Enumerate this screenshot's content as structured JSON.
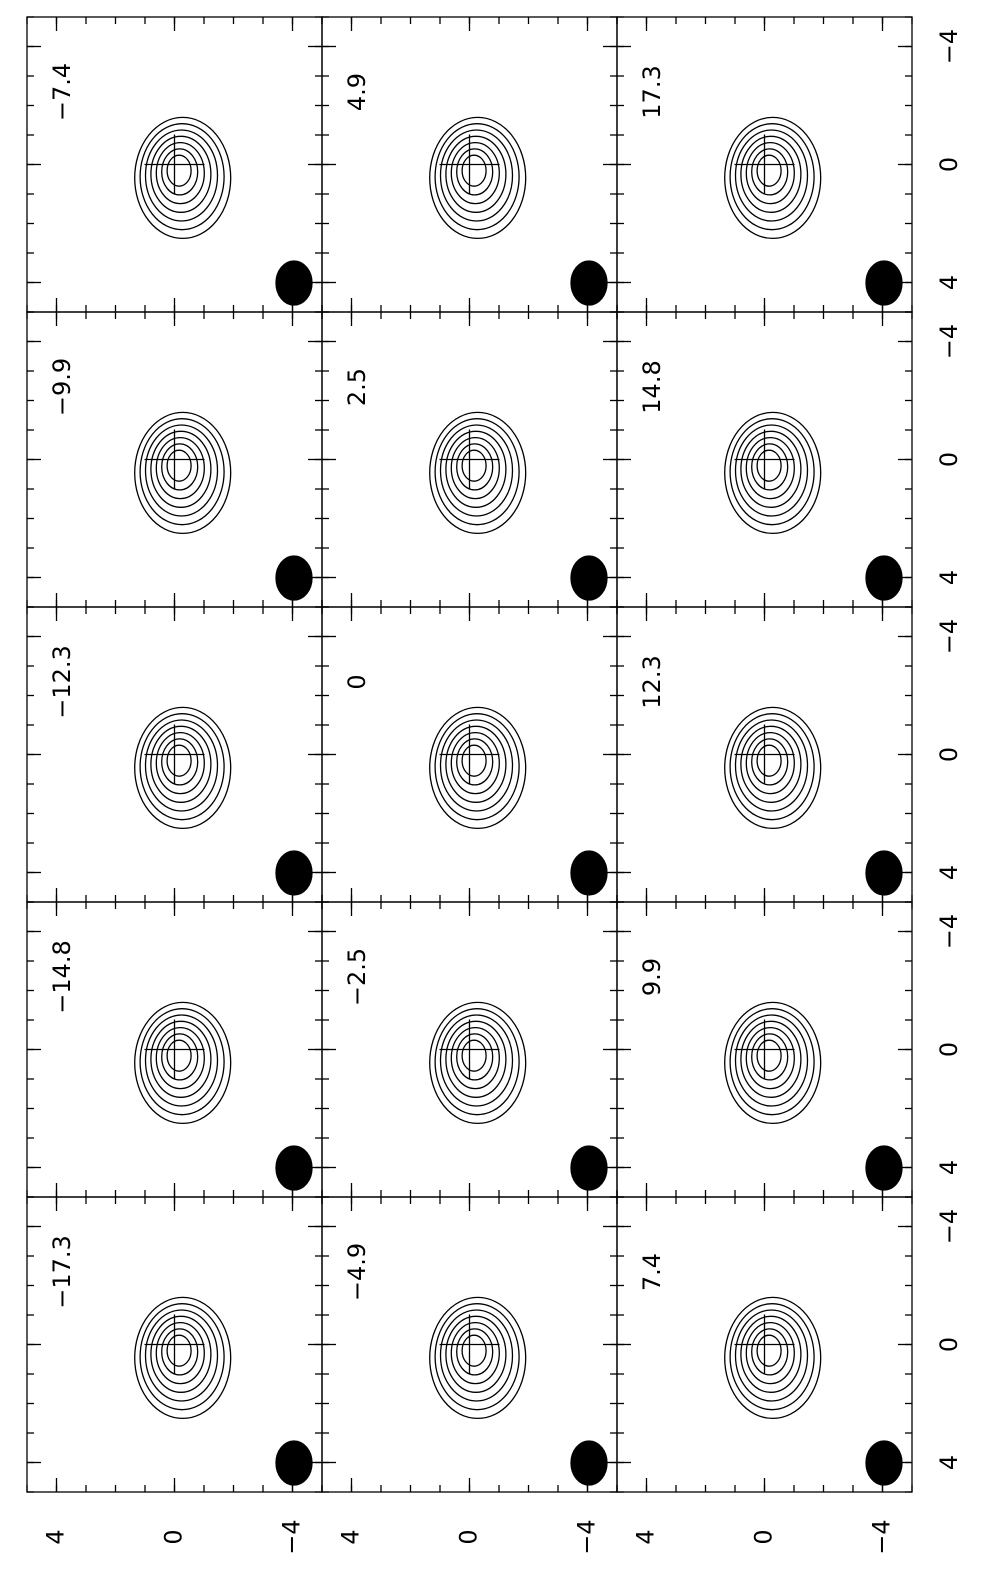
{
  "panels": [
    {
      "label": "−7.4"
    },
    {
      "label": "4.9"
    },
    {
      "label": "17.3"
    },
    {
      "label": "−9.9"
    },
    {
      "label": "2.5"
    },
    {
      "label": "14.8"
    },
    {
      "label": "−12.3"
    },
    {
      "label": "0"
    },
    {
      "label": "12.3"
    },
    {
      "label": "−14.8"
    },
    {
      "label": "−2.5"
    },
    {
      "label": "9.9"
    },
    {
      "label": "−17.3"
    },
    {
      "label": "−4.9"
    },
    {
      "label": "7.4"
    }
  ],
  "x_axis": {
    "lim": [
      5,
      -5
    ],
    "ticks": [
      4,
      0,
      {
        "value": -4,
        "label": "−4"
      }
    ]
  },
  "y_axis": {
    "lim": [
      -5,
      5
    ],
    "ticks": [
      {
        "value": -4,
        "label": "−4"
      },
      0,
      4
    ]
  }
}
